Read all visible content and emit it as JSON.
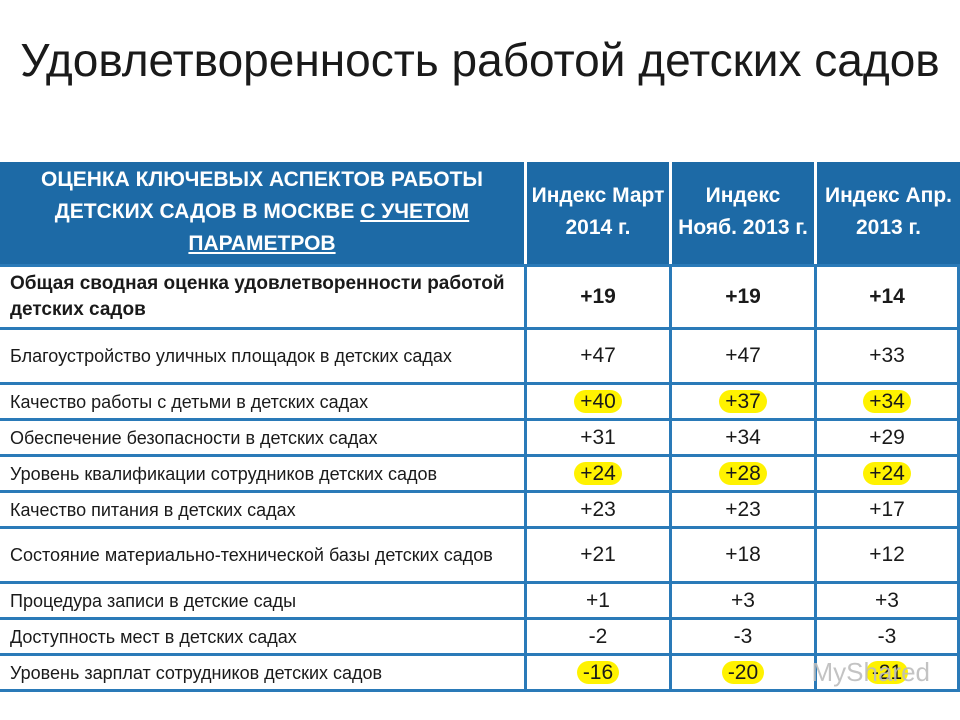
{
  "title": "Удовлетворенность работой детских садов",
  "table": {
    "header": {
      "aspect_line1": "ОЦЕНКА КЛЮЧЕВЫХ АСПЕКТОВ РАБОТЫ",
      "aspect_line2": "ДЕТСКИХ САДОВ В МОСКВЕ",
      "aspect_underlined": "С УЧЕТОМ ПАРАМЕТРОВ",
      "cols": [
        "Индекс Март 2014 г.",
        "Индекс Нояб. 2013 г.",
        "Индекс Апр. 2013 г."
      ]
    },
    "rows": [
      {
        "label": "Общая сводная оценка удовлетворенности работой детских садов",
        "values": [
          "+19",
          "+19",
          "+14"
        ],
        "bold": true,
        "highlight": false
      },
      {
        "label": "Благоустройство уличных площадок в детских садах",
        "values": [
          "+47",
          "+47",
          "+33"
        ],
        "bold": false,
        "highlight": false
      },
      {
        "label": "Качество работы с детьми в детских садах",
        "values": [
          "+40",
          "+37",
          "+34"
        ],
        "bold": false,
        "highlight": true
      },
      {
        "label": "Обеспечение безопасности в детских садах",
        "values": [
          "+31",
          "+34",
          "+29"
        ],
        "bold": false,
        "highlight": false
      },
      {
        "label": "Уровень квалификации сотрудников детских садов",
        "values": [
          "+24",
          "+28",
          "+24"
        ],
        "bold": false,
        "highlight": true
      },
      {
        "label": "Качество питания в детских садах",
        "values": [
          "+23",
          "+23",
          "+17"
        ],
        "bold": false,
        "highlight": false
      },
      {
        "label": "Состояние материально-технической базы детских садов",
        "values": [
          "+21",
          "+18",
          "+12"
        ],
        "bold": false,
        "highlight": false
      },
      {
        "label": "Процедура записи в детские сады",
        "values": [
          "+1",
          "+3",
          "+3"
        ],
        "bold": false,
        "highlight": false
      },
      {
        "label": "Доступность мест в детских садах",
        "values": [
          "-2",
          "-3",
          "-3"
        ],
        "bold": false,
        "highlight": false
      },
      {
        "label": "Уровень зарплат сотрудников детских садов",
        "values": [
          "-16",
          "-20",
          "-21"
        ],
        "bold": false,
        "highlight": true
      }
    ]
  },
  "highlight_color": "#fff200",
  "header_color": "#1d6aa6",
  "watermark": "MyShared"
}
